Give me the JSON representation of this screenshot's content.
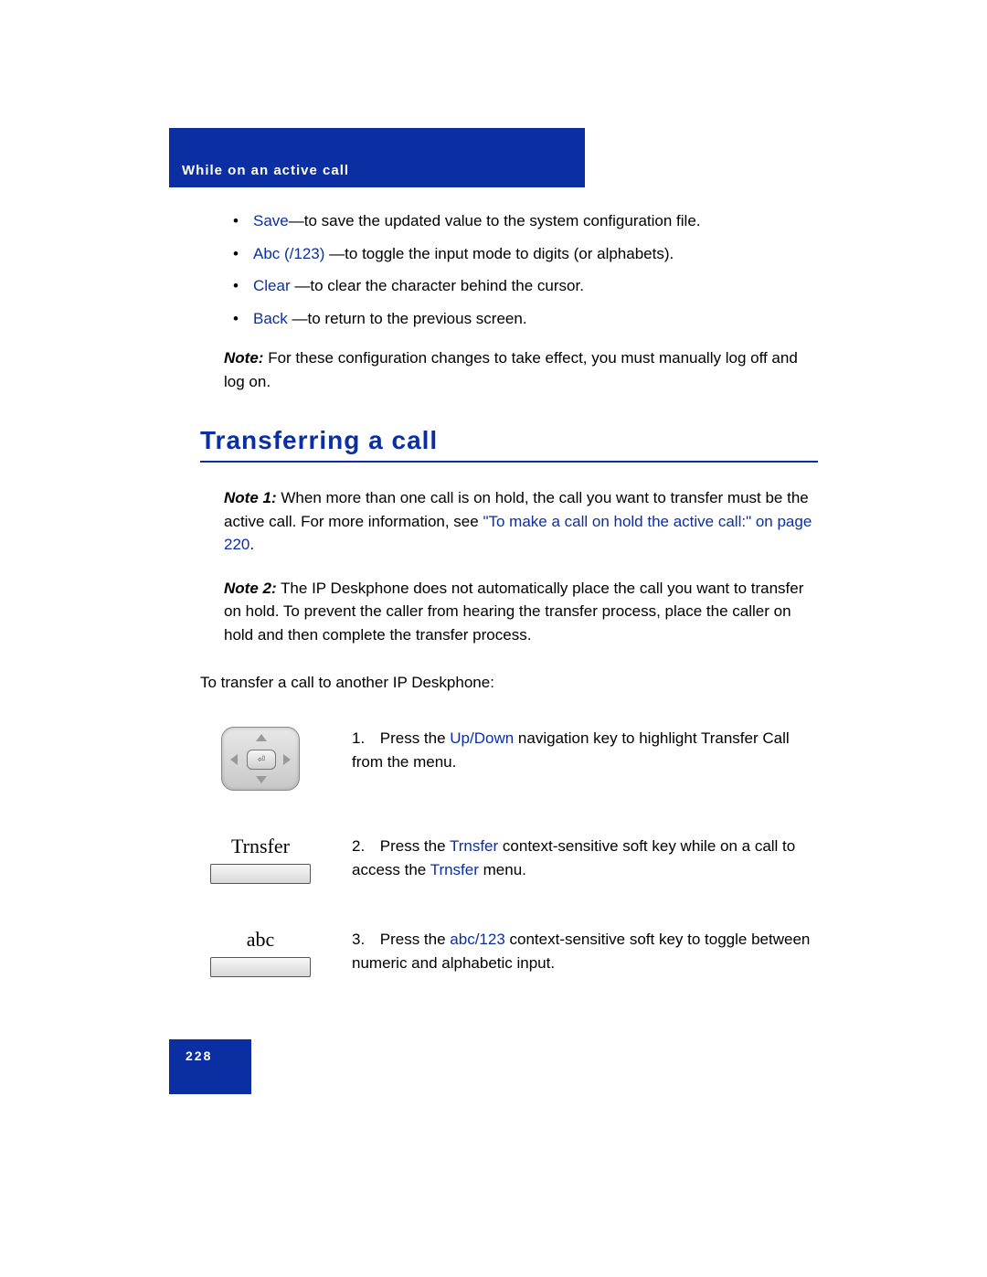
{
  "colors": {
    "brand_blue": "#0b2fa3",
    "text": "#000000",
    "white": "#ffffff"
  },
  "header": {
    "title": "While on an active call"
  },
  "bullets": [
    {
      "term": "Save",
      "desc": "—to save the updated value to the system configuration file."
    },
    {
      "term": "Abc (/123)",
      "desc": "—to toggle the input mode to digits (or alphabets)."
    },
    {
      "term": "Clear",
      "desc": "—to clear the character behind the cursor."
    },
    {
      "term": "Back",
      "desc": "—to return to the previous screen."
    }
  ],
  "config_note": {
    "label": "Note:",
    "text": "For these configuration changes to take effect, you must manually log off and log on."
  },
  "section_title": "Transferring a call",
  "note1": {
    "label": "Note 1:",
    "text_before": "When more than one call is on hold, the call you want to transfer must be the active call. For more information, see ",
    "link": "\"To make a call on hold the active call:\" on page 220",
    "text_after": "."
  },
  "note2": {
    "label": "Note 2:",
    "text": "The IP Deskphone does not automatically place the call you want to transfer on hold. To prevent the caller from hearing the transfer process, place the caller on hold and then complete the transfer process."
  },
  "intro": "To transfer a call to another IP Deskphone:",
  "steps": [
    {
      "num": "1.",
      "pre": "Press the ",
      "term": "Up/Down",
      "post": " navigation key to highlight Transfer Call from the menu."
    },
    {
      "num": "2.",
      "softkey_label": "Trnsfer",
      "pre": "Press the ",
      "term1": "Trnsfer",
      "mid": " context-sensitive soft key while on a call to access the ",
      "term2": "Trnsfer",
      "post": " menu."
    },
    {
      "num": "3.",
      "softkey_label": "abc",
      "pre": "Press the ",
      "term": "abc/123",
      "post": " context-sensitive soft key to toggle between numeric and alphabetic input."
    }
  ],
  "page_number": "228"
}
